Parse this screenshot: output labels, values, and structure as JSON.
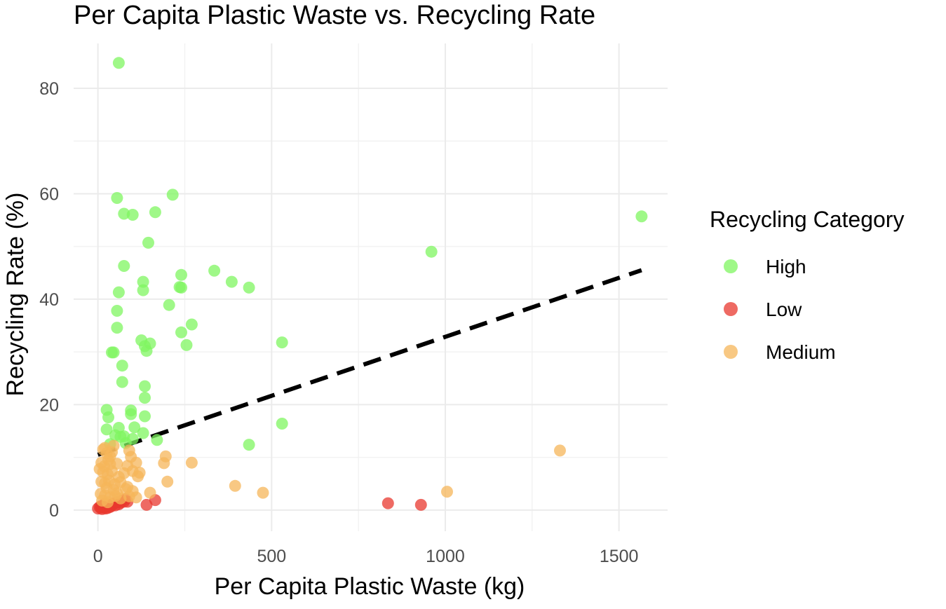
{
  "chart_data": {
    "type": "scatter",
    "title": "Per Capita Plastic Waste vs. Recycling Rate",
    "xlabel": "Per Capita Plastic Waste (kg)",
    "ylabel": "Recycling Rate (%)",
    "xlim": [
      -70,
      1640
    ],
    "ylim": [
      -4,
      88.5
    ],
    "x_ticks": [
      0,
      500,
      1000,
      1500
    ],
    "x_tick_labels": [
      "0",
      "500",
      "1000",
      "1500"
    ],
    "y_ticks": [
      0,
      20,
      40,
      60,
      80
    ],
    "y_tick_labels": [
      "0",
      "20",
      "40",
      "60",
      "80"
    ],
    "grid": true,
    "legend": {
      "title": "Recycling Category",
      "position": "right"
    },
    "trend_line": {
      "style": "dashed",
      "color": "#000000",
      "x": [
        0,
        1565
      ],
      "y": [
        10.5,
        45.5
      ]
    },
    "series": [
      {
        "name": "High",
        "color": "#7ff560",
        "points": [
          [
            60,
            84.8
          ],
          [
            55,
            59.2
          ],
          [
            75,
            56.2
          ],
          [
            100,
            56.0
          ],
          [
            165,
            56.5
          ],
          [
            215,
            59.8
          ],
          [
            145,
            50.7
          ],
          [
            75,
            46.3
          ],
          [
            130,
            43.3
          ],
          [
            130,
            41.7
          ],
          [
            60,
            41.3
          ],
          [
            240,
            44.6
          ],
          [
            235,
            42.3
          ],
          [
            240,
            42.2
          ],
          [
            335,
            45.4
          ],
          [
            385,
            43.3
          ],
          [
            435,
            42.2
          ],
          [
            205,
            38.9
          ],
          [
            55,
            37.8
          ],
          [
            55,
            34.6
          ],
          [
            270,
            35.2
          ],
          [
            240,
            33.7
          ],
          [
            255,
            31.3
          ],
          [
            125,
            32.2
          ],
          [
            135,
            31.1
          ],
          [
            150,
            31.6
          ],
          [
            140,
            30.2
          ],
          [
            40,
            29.9
          ],
          [
            45,
            29.9
          ],
          [
            70,
            27.4
          ],
          [
            70,
            24.3
          ],
          [
            135,
            23.5
          ],
          [
            135,
            21.3
          ],
          [
            530,
            31.8
          ],
          [
            960,
            49.0
          ],
          [
            1565,
            55.7
          ],
          [
            25,
            19.0
          ],
          [
            30,
            17.6
          ],
          [
            95,
            18.9
          ],
          [
            95,
            18.2
          ],
          [
            135,
            17.8
          ],
          [
            25,
            15.3
          ],
          [
            60,
            15.6
          ],
          [
            105,
            15.7
          ],
          [
            50,
            14.2
          ],
          [
            75,
            14.0
          ],
          [
            65,
            13.9
          ],
          [
            130,
            14.6
          ],
          [
            170,
            13.3
          ],
          [
            100,
            13.5
          ],
          [
            530,
            16.4
          ],
          [
            435,
            12.4
          ],
          [
            35,
            12.5
          ],
          [
            80,
            12.7
          ]
        ]
      },
      {
        "name": "Low",
        "color": "#e8382f",
        "points": [
          [
            0,
            0.3
          ],
          [
            5,
            0.6
          ],
          [
            8,
            0.4
          ],
          [
            10,
            0.8
          ],
          [
            12,
            0.2
          ],
          [
            15,
            0.9
          ],
          [
            18,
            0.5
          ],
          [
            20,
            1.2
          ],
          [
            22,
            0.3
          ],
          [
            25,
            0.7
          ],
          [
            28,
            0.4
          ],
          [
            30,
            1.0
          ],
          [
            35,
            0.6
          ],
          [
            40,
            0.8
          ],
          [
            45,
            1.3
          ],
          [
            50,
            0.9
          ],
          [
            55,
            1.5
          ],
          [
            60,
            1.1
          ],
          [
            65,
            1.4
          ],
          [
            70,
            1.8
          ],
          [
            75,
            1.6
          ],
          [
            80,
            2.1
          ],
          [
            85,
            1.6
          ],
          [
            140,
            1.0
          ],
          [
            165,
            1.9
          ],
          [
            835,
            1.3
          ],
          [
            930,
            1.0
          ]
        ]
      },
      {
        "name": "Medium",
        "color": "#f5b55a",
        "points": [
          [
            15,
            11.5
          ],
          [
            20,
            11.8
          ],
          [
            25,
            10.8
          ],
          [
            35,
            10.2
          ],
          [
            40,
            11.0
          ],
          [
            45,
            12.2
          ],
          [
            90,
            11.3
          ],
          [
            30,
            9.5
          ],
          [
            10,
            9.0
          ],
          [
            18,
            8.3
          ],
          [
            35,
            8.7
          ],
          [
            55,
            8.8
          ],
          [
            85,
            8.4
          ],
          [
            95,
            10.1
          ],
          [
            110,
            9.0
          ],
          [
            5,
            7.8
          ],
          [
            15,
            7.2
          ],
          [
            28,
            6.8
          ],
          [
            40,
            7.4
          ],
          [
            60,
            6.3
          ],
          [
            75,
            7.0
          ],
          [
            100,
            7.4
          ],
          [
            115,
            6.4
          ],
          [
            120,
            7.1
          ],
          [
            10,
            5.4
          ],
          [
            20,
            5.1
          ],
          [
            32,
            5.6
          ],
          [
            48,
            4.9
          ],
          [
            65,
            5.3
          ],
          [
            85,
            4.4
          ],
          [
            25,
            4.2
          ],
          [
            45,
            3.8
          ],
          [
            55,
            3.2
          ],
          [
            80,
            4.0
          ],
          [
            100,
            3.6
          ],
          [
            8,
            3.1
          ],
          [
            20,
            2.8
          ],
          [
            35,
            2.4
          ],
          [
            50,
            2.7
          ],
          [
            65,
            2.2
          ],
          [
            90,
            2.6
          ],
          [
            110,
            2.4
          ],
          [
            12,
            1.8
          ],
          [
            28,
            1.5
          ],
          [
            150,
            3.3
          ],
          [
            190,
            8.9
          ],
          [
            195,
            10.2
          ],
          [
            200,
            5.4
          ],
          [
            270,
            9.0
          ],
          [
            395,
            4.6
          ],
          [
            475,
            3.3
          ],
          [
            1005,
            3.5
          ],
          [
            1330,
            11.3
          ]
        ]
      }
    ]
  }
}
